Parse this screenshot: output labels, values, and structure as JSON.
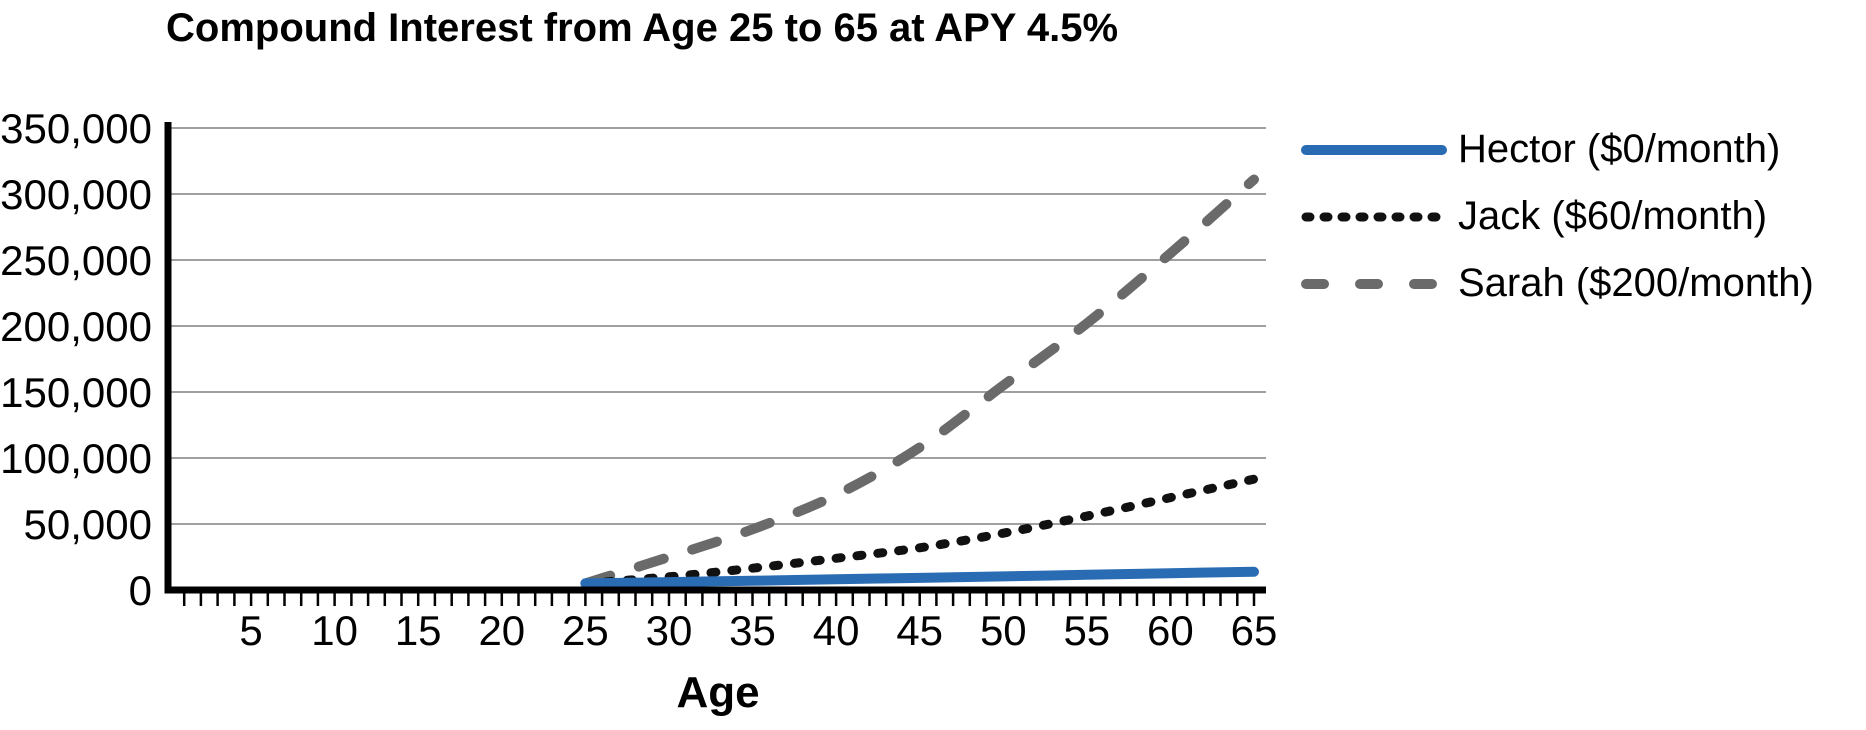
{
  "chart_data": {
    "type": "line",
    "title": "Compound Interest from Age 25 to 65 at APY 4.5%",
    "xlabel": "Age",
    "ylabel": "",
    "xlim": [
      0,
      66
    ],
    "ylim": [
      0,
      350000
    ],
    "x_tick_labels": [
      5,
      10,
      15,
      20,
      25,
      30,
      35,
      40,
      45,
      50,
      55,
      60,
      65
    ],
    "x_minor_tick_interval": 1,
    "y_ticks": [
      0,
      50000,
      100000,
      150000,
      200000,
      250000,
      300000,
      350000
    ],
    "y_tick_labels": [
      "0",
      "50,000",
      "100,000",
      "150,000",
      "200,000",
      "250,000",
      "300,000",
      "350,000"
    ],
    "grid": "horizontal",
    "legend_position": "right",
    "x": [
      25,
      30,
      35,
      40,
      45,
      50,
      55,
      60,
      65
    ],
    "series": [
      {
        "name": "Hector ($0/month)",
        "slug": "hector",
        "color": "#2a6cb4",
        "dash": "solid",
        "values": [
          5000,
          6000,
          7000,
          8100,
          9200,
          10300,
          11500,
          12700,
          13800
        ]
      },
      {
        "name": "Jack ($60/month)",
        "slug": "jack",
        "color": "#111111",
        "dash": "dotted",
        "values": [
          5000,
          10000,
          16500,
          24000,
          32000,
          43000,
          56000,
          70000,
          84000
        ]
      },
      {
        "name": "Sarah ($200/month)",
        "slug": "sarah",
        "color": "#6a6a6a",
        "dash": "dashed",
        "values": [
          5000,
          25000,
          46000,
          72000,
          108000,
          155000,
          202000,
          255000,
          311000
        ]
      }
    ],
    "colors": {
      "axis": "#000000",
      "gridline": "#a0a0a0",
      "text": "#000000",
      "background": "#ffffff"
    }
  }
}
